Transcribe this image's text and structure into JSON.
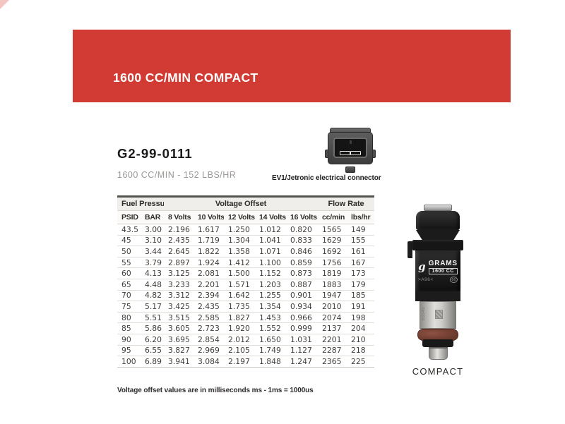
{
  "header": {
    "title": "1600 CC/MIN COMPACT"
  },
  "product": {
    "part_number": "G2-99-0111",
    "subtitle": "1600 CC/MIN - 152 LBS/HR",
    "connector_caption": "EV1/Jetronic electrical connector"
  },
  "spec_table": {
    "group_headers": [
      {
        "label": "Fuel Pressure",
        "span": 2
      },
      {
        "label": "Voltage Offset",
        "span": 5
      },
      {
        "label": "Flow Rate",
        "span": 2
      }
    ],
    "columns": [
      "PSID",
      "BAR",
      "8 Volts",
      "10 Volts",
      "12 Volts",
      "14 Volts",
      "16 Volts",
      "cc/min",
      "lbs/hr"
    ],
    "rows": [
      [
        "43.5",
        "3.00",
        "2.196",
        "1.617",
        "1.250",
        "1.012",
        "0.820",
        "1565",
        "149"
      ],
      [
        "45",
        "3.10",
        "2.435",
        "1.719",
        "1.304",
        "1.041",
        "0.833",
        "1629",
        "155"
      ],
      [
        "50",
        "3.44",
        "2.645",
        "1.822",
        "1.358",
        "1.071",
        "0.846",
        "1692",
        "161"
      ],
      [
        "55",
        "3.79",
        "2.897",
        "1.924",
        "1.412",
        "1.100",
        "0.859",
        "1756",
        "167"
      ],
      [
        "60",
        "4.13",
        "3.125",
        "2.081",
        "1.500",
        "1.152",
        "0.873",
        "1819",
        "173"
      ],
      [
        "65",
        "4.48",
        "3.233",
        "2.201",
        "1.571",
        "1.203",
        "0.887",
        "1883",
        "179"
      ],
      [
        "70",
        "4.82",
        "3.312",
        "2.394",
        "1.642",
        "1.255",
        "0.901",
        "1947",
        "185"
      ],
      [
        "75",
        "5.17",
        "3.425",
        "2.435",
        "1.735",
        "1.354",
        "0.934",
        "2010",
        "191"
      ],
      [
        "80",
        "5.51",
        "3.515",
        "2.585",
        "1.827",
        "1.453",
        "0.966",
        "2074",
        "198"
      ],
      [
        "85",
        "5.86",
        "3.605",
        "2.723",
        "1.920",
        "1.552",
        "0.999",
        "2137",
        "204"
      ],
      [
        "90",
        "6.20",
        "3.695",
        "2.854",
        "2.012",
        "1.650",
        "1.031",
        "2201",
        "210"
      ],
      [
        "95",
        "6.55",
        "3.827",
        "2.969",
        "2.105",
        "1.749",
        "1.127",
        "2287",
        "218"
      ],
      [
        "100",
        "6.89",
        "3.941",
        "3.084",
        "2.197",
        "1.848",
        "1.247",
        "2365",
        "225"
      ]
    ],
    "footnote": "Voltage offset values are in milliseconds ms - 1ms = 1000us"
  },
  "injector": {
    "logo_glyph": "g",
    "brand": "GRAMS",
    "model": "1600 CC",
    "etch_left": ">A96<",
    "etch_right": "66",
    "barrel_etch": "83545",
    "caption": "COMPACT"
  },
  "colors": {
    "accent_red": "#d23b33",
    "table_header_bg": "#f0eeea",
    "oring_brown": "#6b3a2e"
  }
}
